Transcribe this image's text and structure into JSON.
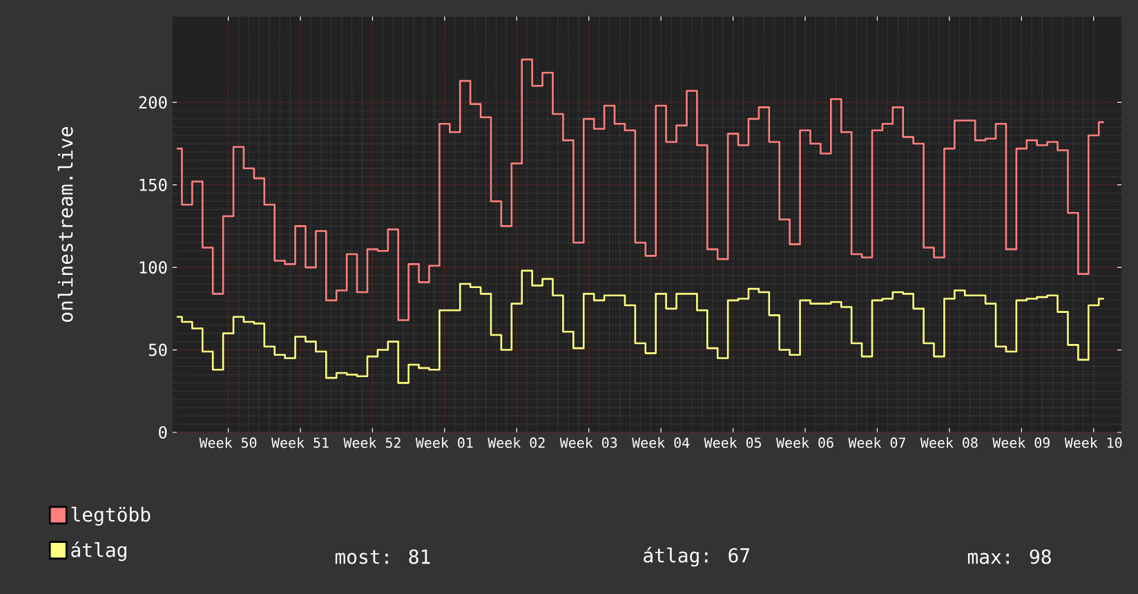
{
  "chart_data": {
    "type": "step",
    "ylabel": "onlinestream.live",
    "ylim": [
      0,
      252
    ],
    "yticks": [
      0,
      50,
      100,
      150,
      200
    ],
    "grid": true,
    "legend": "bottom",
    "marker": "none",
    "line_style": "solid",
    "categories": [
      null,
      null,
      null,
      null,
      null,
      "Week 50",
      null,
      null,
      null,
      null,
      null,
      null,
      "Week 51",
      null,
      null,
      null,
      null,
      null,
      null,
      "Week 52",
      null,
      null,
      null,
      null,
      null,
      null,
      "Week 01",
      null,
      null,
      null,
      null,
      null,
      null,
      "Week 02",
      null,
      null,
      null,
      null,
      null,
      null,
      "Week 03",
      null,
      null,
      null,
      null,
      null,
      null,
      "Week 04",
      null,
      null,
      null,
      null,
      null,
      null,
      "Week 05",
      null,
      null,
      null,
      null,
      null,
      null,
      "Week 06",
      null,
      null,
      null,
      null,
      null,
      null,
      "Week 07",
      null,
      null,
      null,
      null,
      null,
      null,
      "Week 08",
      null,
      null,
      null,
      null,
      null,
      null,
      "Week 09",
      null,
      null,
      null,
      null,
      null,
      null,
      "Week 10",
      null
    ],
    "series": [
      {
        "name": "legtöbb",
        "color": "#ff7f7f",
        "values": [
          172,
          138,
          152,
          112,
          84,
          131,
          173,
          160,
          154,
          138,
          104,
          102,
          125,
          100,
          122,
          80,
          86,
          108,
          85,
          111,
          110,
          123,
          68,
          102,
          91,
          101,
          187,
          182,
          213,
          199,
          191,
          140,
          125,
          163,
          226,
          210,
          218,
          193,
          177,
          115,
          190,
          184,
          198,
          187,
          183,
          115,
          107,
          198,
          176,
          186,
          207,
          174,
          111,
          105,
          181,
          174,
          190,
          197,
          176,
          129,
          114,
          183,
          175,
          169,
          202,
          182,
          108,
          106,
          183,
          187,
          197,
          179,
          175,
          112,
          106,
          172,
          189,
          189,
          177,
          178,
          187,
          111,
          172,
          177,
          174,
          176,
          171,
          133,
          96,
          180,
          188
        ]
      },
      {
        "name": "átlag",
        "color": "#ffff7f",
        "values": [
          70,
          67,
          63,
          49,
          38,
          60,
          70,
          67,
          66,
          52,
          47,
          45,
          58,
          55,
          49,
          33,
          36,
          35,
          34,
          46,
          50,
          55,
          30,
          41,
          39,
          38,
          74,
          74,
          90,
          88,
          84,
          59,
          50,
          78,
          98,
          89,
          93,
          83,
          61,
          51,
          84,
          80,
          83,
          83,
          77,
          54,
          48,
          84,
          75,
          84,
          84,
          74,
          51,
          45,
          80,
          81,
          87,
          85,
          71,
          50,
          47,
          80,
          78,
          78,
          79,
          76,
          54,
          46,
          80,
          81,
          85,
          84,
          75,
          54,
          46,
          81,
          86,
          83,
          83,
          78,
          52,
          49,
          80,
          81,
          82,
          83,
          73,
          53,
          44,
          77,
          81
        ]
      }
    ],
    "annotations": [
      "most: 81",
      "átlag: 67",
      "max: 98"
    ]
  }
}
